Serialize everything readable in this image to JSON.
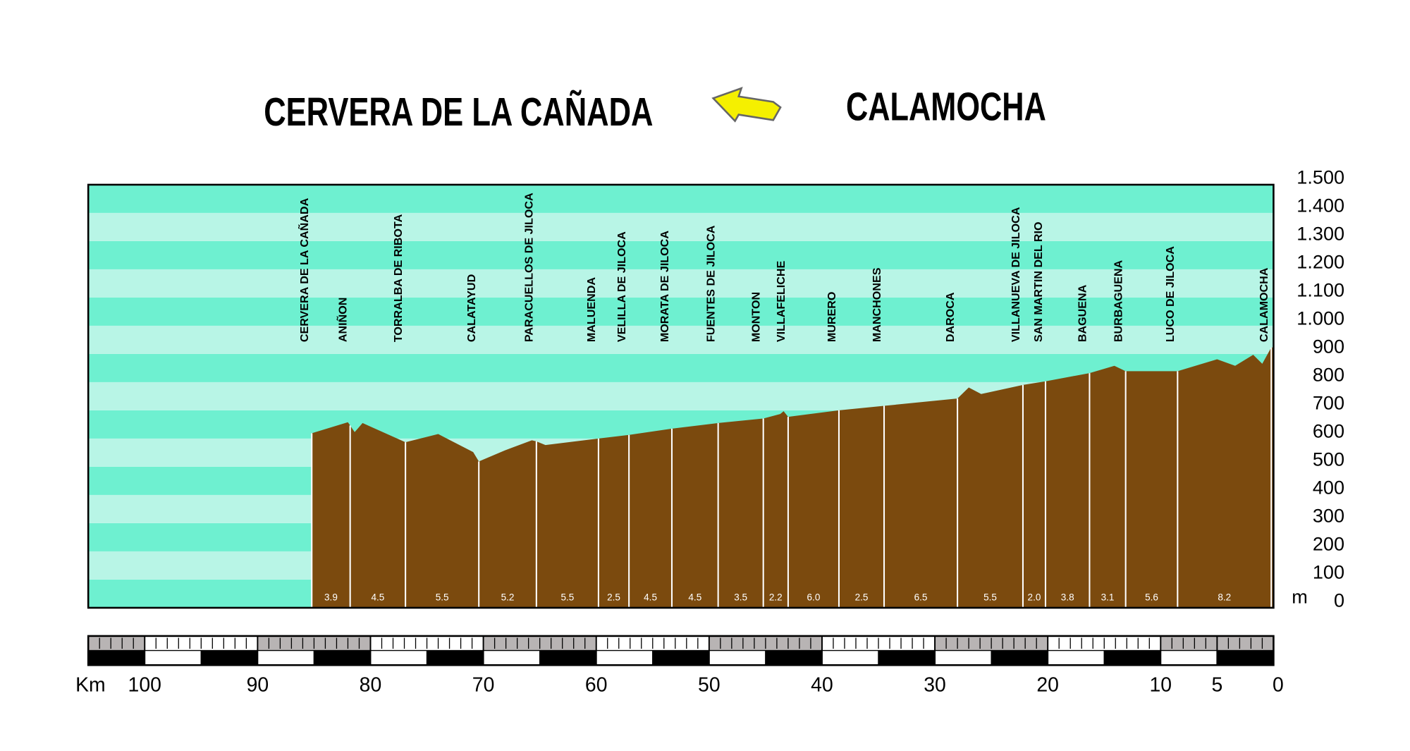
{
  "chart_data": {
    "type": "area",
    "title_left": "CERVERA DE LA CAÑADA",
    "title_right": "CALAMOCHA",
    "y_unit": "m",
    "x_unit": "Km",
    "color": "#7b4a0e",
    "band_colors": [
      "#6ef0d0",
      "#b8f5e6"
    ],
    "xlim": [
      105,
      0
    ],
    "ylim": [
      0,
      1500
    ],
    "yticks": [
      {
        "value": 1500,
        "label": "1.500"
      },
      {
        "value": 1400,
        "label": "1.400"
      },
      {
        "value": 1300,
        "label": "1.300"
      },
      {
        "value": 1200,
        "label": "1.200"
      },
      {
        "value": 1100,
        "label": "1.100"
      },
      {
        "value": 1000,
        "label": "1.000"
      },
      900,
      800,
      700,
      600,
      500,
      400,
      300,
      200,
      100,
      0
    ],
    "xticks": [
      100,
      90,
      80,
      70,
      60,
      50,
      40,
      30,
      20,
      10,
      5,
      0
    ],
    "profile": {
      "x": [
        85.2,
        82.0,
        81.4,
        80.7,
        79.8,
        76.9,
        74.0,
        70.9,
        70.4,
        68.1,
        65.7,
        65.3,
        64.5,
        59.8,
        57.1,
        53.3,
        49.2,
        45.2,
        43.7,
        43.4,
        43.0,
        38.5,
        34.5,
        28.0,
        27.0,
        25.9,
        22.2,
        20.2,
        16.3,
        14.1,
        13.1,
        8.5,
        5.0,
        3.4,
        1.8,
        1.0,
        0.2,
        0
      ],
      "y": [
        619,
        658,
        623,
        655,
        639,
        587,
        616,
        552,
        519,
        558,
        594,
        590,
        577,
        600,
        613,
        635,
        655,
        671,
        687,
        697,
        677,
        700,
        716,
        742,
        781,
        758,
        790,
        803,
        832,
        858,
        839,
        839,
        881,
        858,
        897,
        865,
        923,
        923
      ]
    },
    "towns": [
      {
        "name": "CERVERA DE LA CAÑADA",
        "km": 85.2
      },
      {
        "name": "ANIÑON",
        "km": 81.8
      },
      {
        "name": "TORRALBA DE RIBOTA",
        "km": 76.9
      },
      {
        "name": "CALATAYUD",
        "km": 70.4
      },
      {
        "name": "PARACUELLOS DE JILOCA",
        "km": 65.3
      },
      {
        "name": "MALUENDA",
        "km": 59.8
      },
      {
        "name": "VELILLA DE JILOCA",
        "km": 57.1
      },
      {
        "name": "MORATA DE JILOCA",
        "km": 53.3
      },
      {
        "name": "FUENTES DE JILOCA",
        "km": 49.2
      },
      {
        "name": "MONTON",
        "km": 45.2
      },
      {
        "name": "VILLAFELICHE",
        "km": 43.0
      },
      {
        "name": "MURERO",
        "km": 38.5
      },
      {
        "name": "MANCHONES",
        "km": 34.5
      },
      {
        "name": "DAROCA",
        "km": 28.0
      },
      {
        "name": "VILLANUEVA DE JILOCA",
        "km": 22.2
      },
      {
        "name": "SAN MARTIN DEL RIO",
        "km": 20.2
      },
      {
        "name": "BAGUENA",
        "km": 16.3
      },
      {
        "name": "BURBAGUENA",
        "km": 13.1
      },
      {
        "name": "LUCO DE JILOCA",
        "km": 8.5
      },
      {
        "name": "CALAMOCHA",
        "km": 0.2
      }
    ],
    "segment_labels": [
      "3.9",
      "4.5",
      "5.5",
      "5.2",
      "5.5",
      "2.5",
      "4.5",
      "4.5",
      "3.5",
      "2.2",
      "6.0",
      "2.5",
      "6.5",
      "5.5",
      "2.0",
      "3.8",
      "3.1",
      "5.6",
      "8.2"
    ]
  }
}
